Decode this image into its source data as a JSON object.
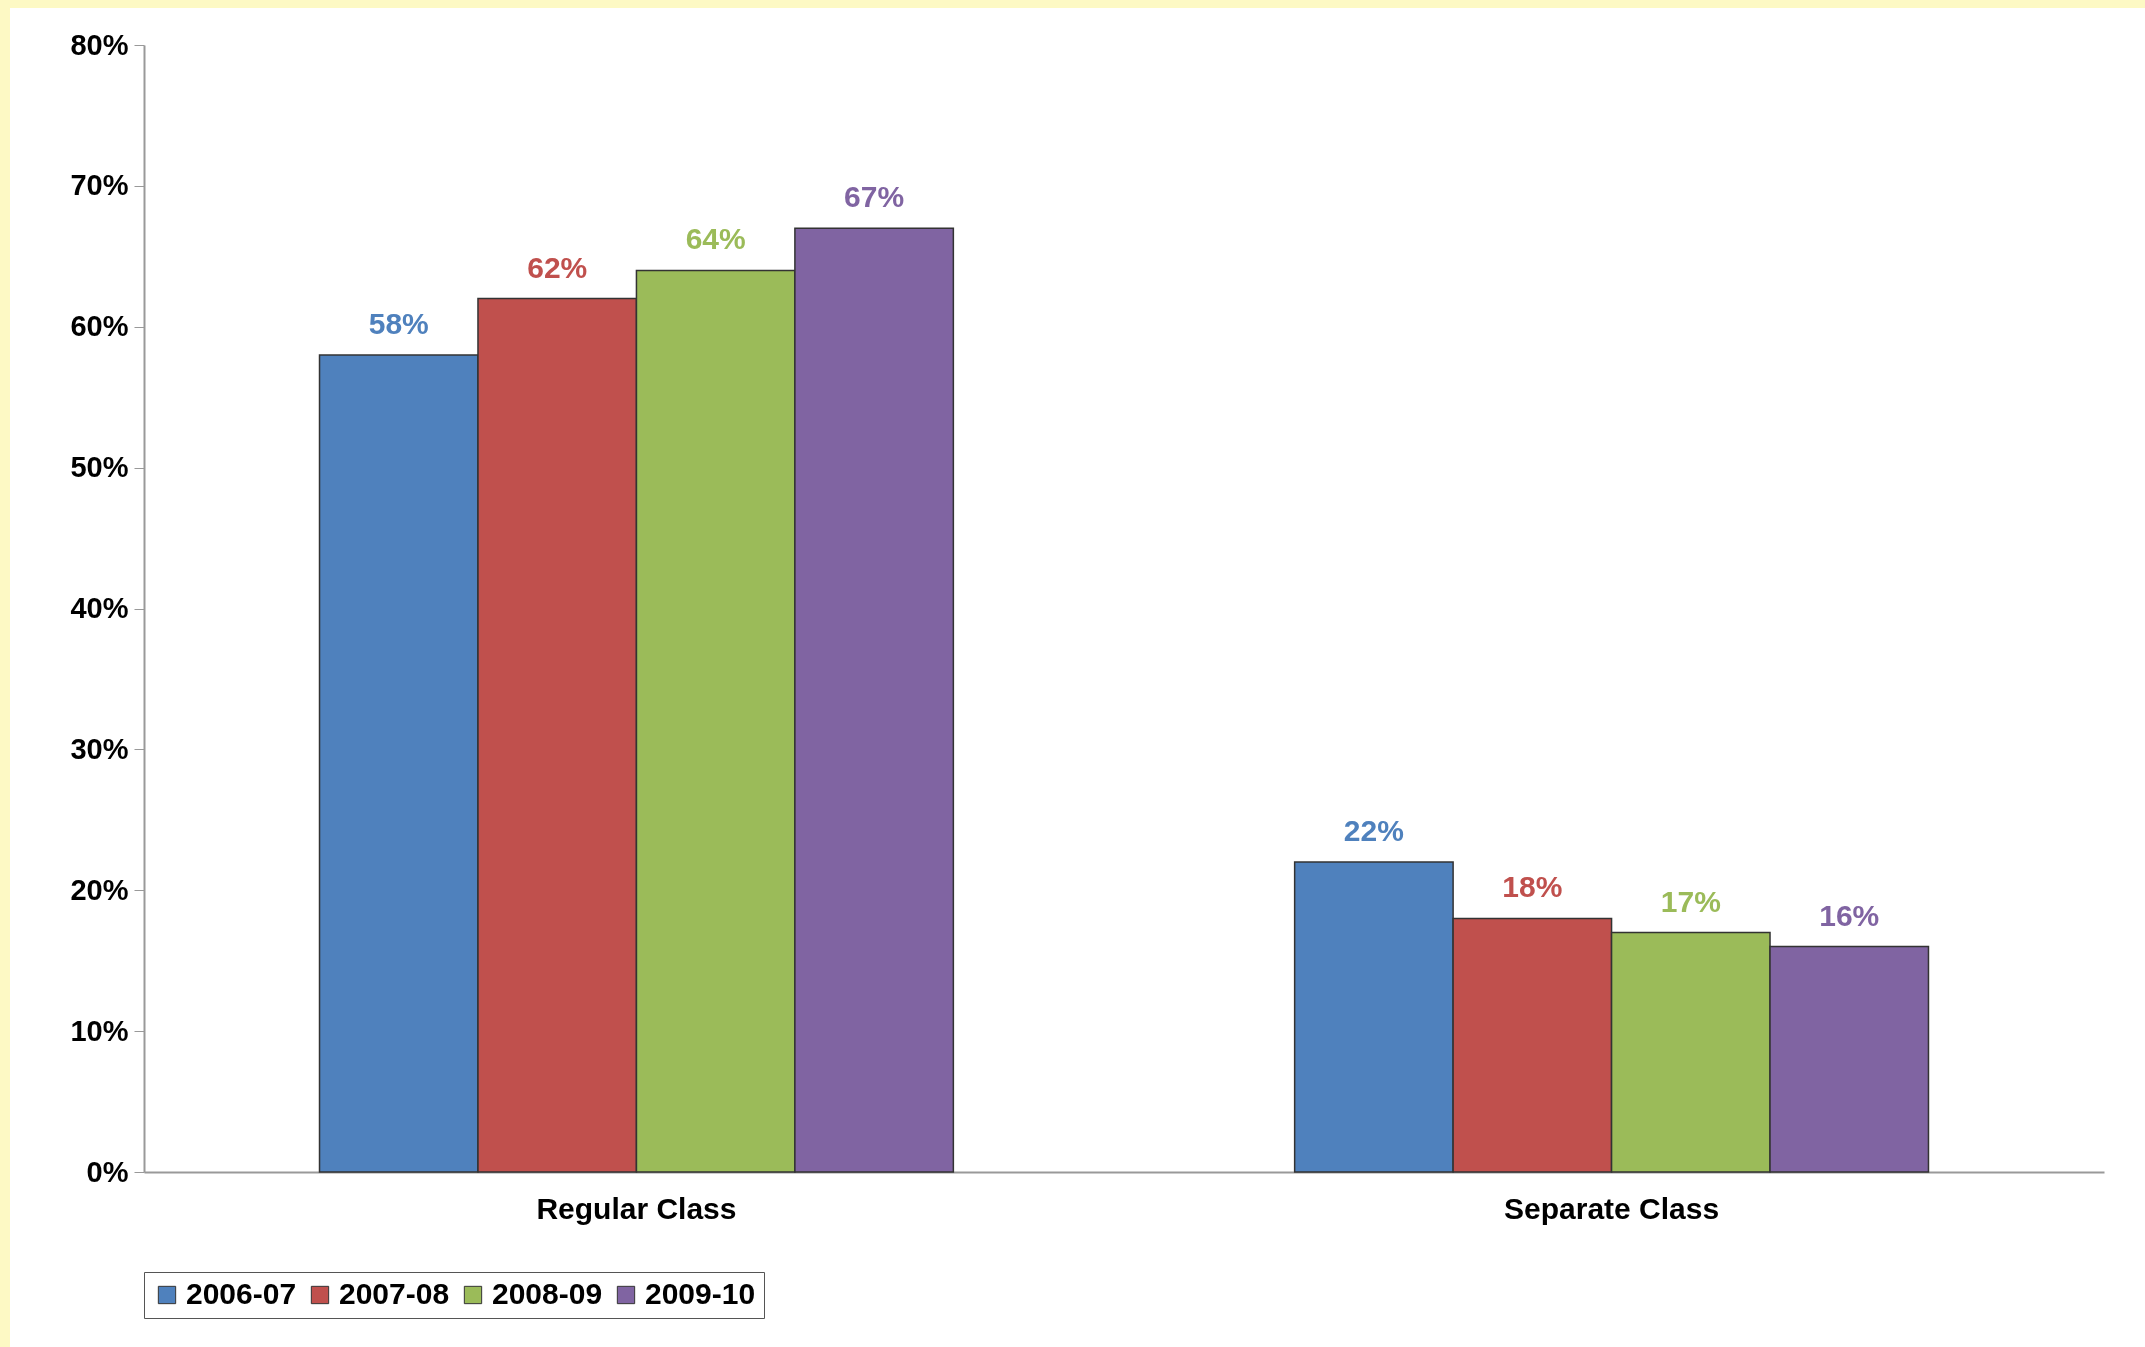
{
  "chart_data": {
    "type": "bar",
    "categories": [
      "Regular Class",
      "Separate Class"
    ],
    "series": [
      {
        "name": "2006-07",
        "color": "#4f81bd",
        "values": [
          58,
          22
        ],
        "value_labels": [
          "58%",
          "22%"
        ]
      },
      {
        "name": "2007-08",
        "color": "#c0504d",
        "values": [
          62,
          18
        ],
        "value_labels": [
          "62%",
          "18%"
        ]
      },
      {
        "name": "2008-09",
        "color": "#9bbb59",
        "values": [
          64,
          17
        ],
        "value_labels": [
          "64%",
          "17%"
        ]
      },
      {
        "name": "2009-10",
        "color": "#8064a2",
        "values": [
          67,
          16
        ],
        "value_labels": [
          "67%",
          "16%"
        ]
      }
    ],
    "ylim": [
      0,
      80
    ],
    "yticks": [
      {
        "value": 0,
        "label": "0%"
      },
      {
        "value": 10,
        "label": "10%"
      },
      {
        "value": 20,
        "label": "20%"
      },
      {
        "value": 30,
        "label": "30%"
      },
      {
        "value": 40,
        "label": "40%"
      },
      {
        "value": 50,
        "label": "50%"
      },
      {
        "value": 60,
        "label": "60%"
      },
      {
        "value": 70,
        "label": "70%"
      },
      {
        "value": 80,
        "label": "80%"
      }
    ],
    "grid": false,
    "legend": "bottom"
  }
}
